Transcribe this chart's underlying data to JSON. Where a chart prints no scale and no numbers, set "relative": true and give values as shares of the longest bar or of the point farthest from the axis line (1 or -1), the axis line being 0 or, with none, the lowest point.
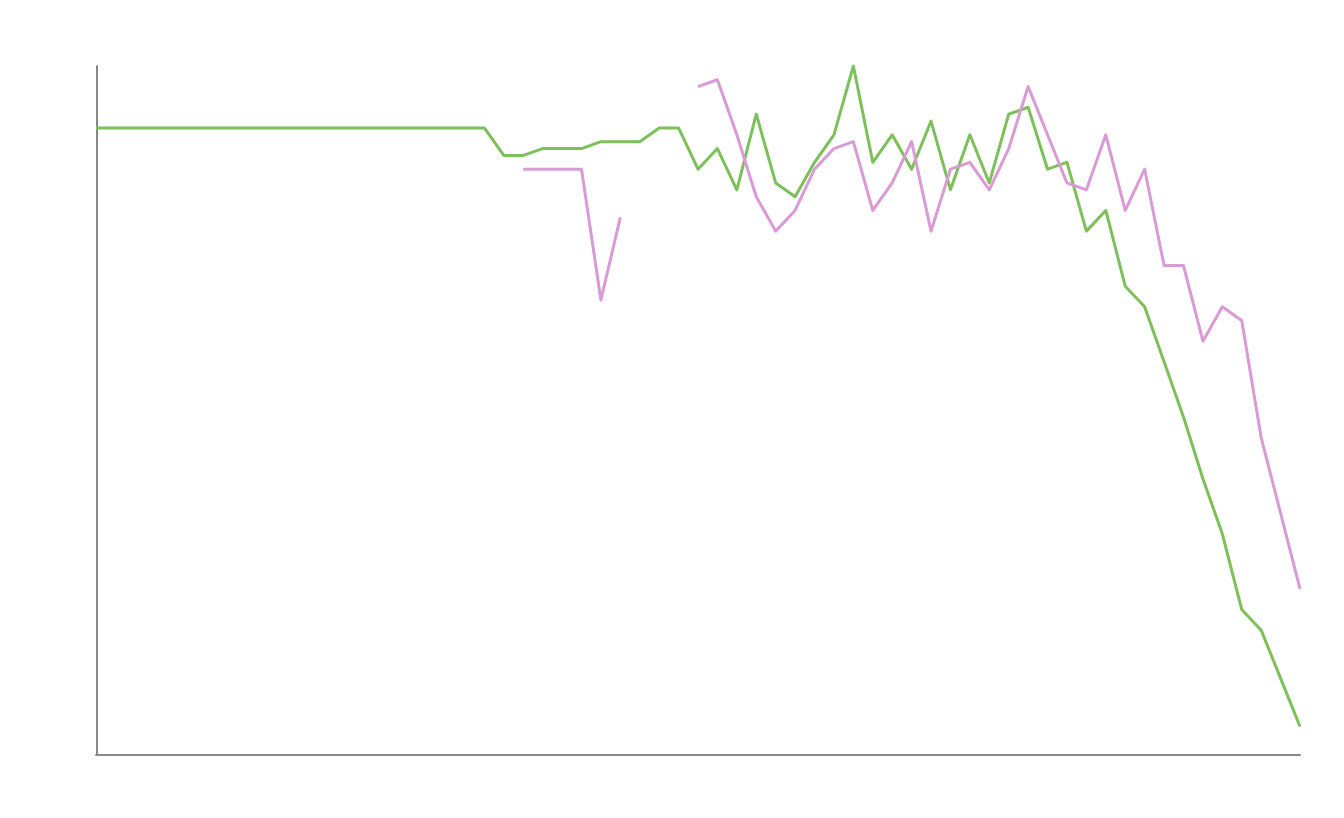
{
  "chart_data": {
    "type": "line",
    "relative": true,
    "categories": [
      null,
      null,
      null,
      null,
      null,
      null,
      null,
      null,
      null,
      null,
      null,
      null,
      null,
      null,
      null,
      null,
      null,
      null,
      null,
      null,
      null,
      null,
      null,
      null,
      null,
      null,
      null,
      null,
      null,
      null,
      null,
      null,
      null,
      null,
      null,
      null,
      null,
      null,
      null,
      null,
      null,
      null,
      null,
      null,
      null,
      null,
      null,
      null,
      null,
      null,
      null,
      null,
      null,
      null,
      null,
      null,
      null,
      null,
      null,
      null,
      null,
      null,
      null
    ],
    "series": [
      {
        "color": "#7cc05a",
        "values": [
          0.91,
          0.91,
          0.91,
          0.91,
          0.91,
          0.91,
          0.91,
          0.91,
          0.91,
          0.91,
          0.91,
          0.91,
          0.91,
          0.91,
          0.91,
          0.91,
          0.91,
          0.91,
          0.91,
          0.91,
          0.91,
          0.87,
          0.87,
          0.88,
          0.88,
          0.88,
          0.89,
          0.89,
          0.89,
          0.91,
          0.91,
          0.85,
          0.88,
          0.82,
          0.93,
          0.83,
          0.81,
          0.86,
          0.9,
          1,
          0.86,
          0.9,
          0.85,
          0.92,
          0.82,
          0.9,
          0.83,
          0.93,
          0.94,
          0.85,
          0.86,
          0.76,
          0.79,
          0.68,
          0.65,
          0.57,
          0.49,
          0.4,
          0.32,
          0.21,
          0.18,
          0.11,
          0.04
        ]
      },
      {
        "color": "#d99ad6",
        "values": [
          null,
          null,
          null,
          null,
          null,
          null,
          null,
          null,
          null,
          null,
          null,
          null,
          null,
          null,
          null,
          null,
          null,
          null,
          null,
          null,
          null,
          null,
          0.85,
          0.85,
          0.85,
          0.85,
          0.66,
          0.78,
          null,
          null,
          null,
          0.97,
          0.98,
          0.9,
          0.81,
          0.76,
          0.79,
          0.85,
          0.88,
          0.89,
          0.79,
          0.83,
          0.89,
          0.76,
          0.85,
          0.86,
          0.82,
          0.88,
          0.97,
          0.9,
          0.83,
          0.82,
          0.9,
          0.79,
          0.85,
          0.71,
          0.71,
          0.6,
          0.65,
          0.63,
          0.46,
          0.35,
          0.24
        ]
      }
    ]
  }
}
